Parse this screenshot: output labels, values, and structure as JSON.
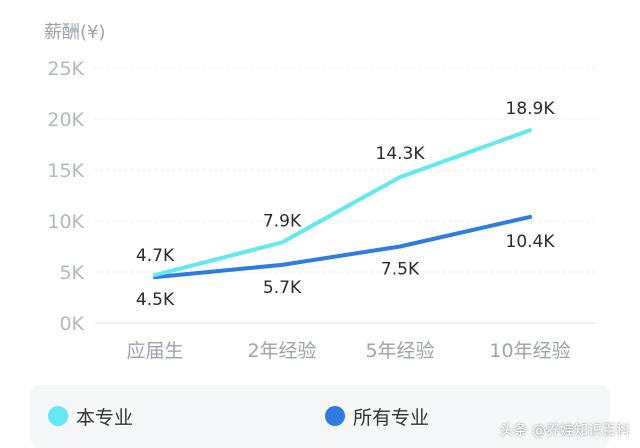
{
  "chart_data": {
    "type": "line",
    "ylabel": "薪酬(¥)",
    "categories": [
      "应届生",
      "2年经验",
      "5年经验",
      "10年经验"
    ],
    "yticks": [
      "0K",
      "5K",
      "10K",
      "15K",
      "20K",
      "25K"
    ],
    "ylim": [
      0,
      25
    ],
    "grid": true,
    "legend_position": "bottom",
    "series": [
      {
        "name": "本专业",
        "color": "#62e8f0",
        "values": [
          4.7,
          7.9,
          14.3,
          18.9
        ],
        "labels": [
          "4.7K",
          "7.9K",
          "14.3K",
          "18.9K"
        ]
      },
      {
        "name": "所有专业",
        "color": "#2f7be0",
        "values": [
          4.5,
          5.7,
          7.5,
          10.4
        ],
        "labels": [
          "4.5K",
          "5.7K",
          "7.5K",
          "10.4K"
        ]
      }
    ]
  },
  "legend": {
    "items": [
      {
        "label": "本专业",
        "color": "#62e8f0"
      },
      {
        "label": "所有专业",
        "color": "#2f7be0"
      }
    ]
  },
  "watermark": "头条 @养娃知识百科"
}
